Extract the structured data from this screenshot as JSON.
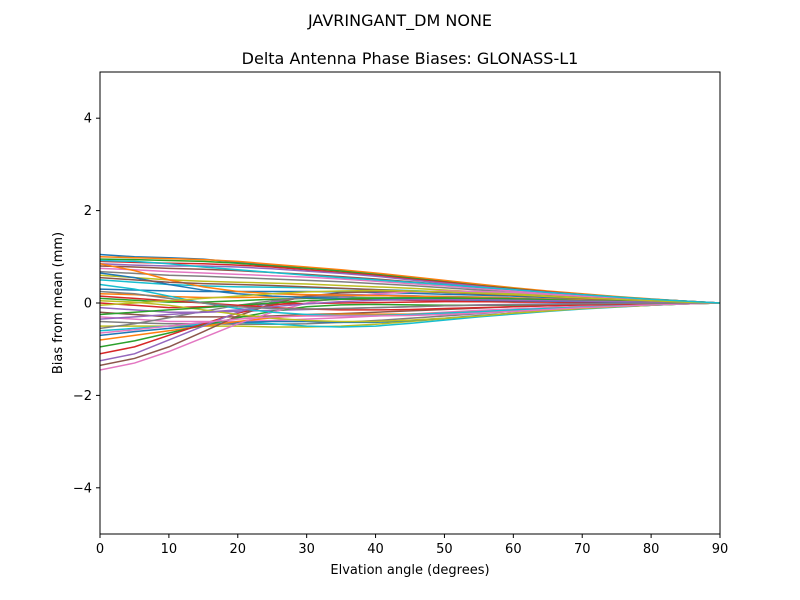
{
  "chart_data": {
    "type": "line",
    "suptitle": "JAVRINGANT_DM   NONE",
    "title": "Delta Antenna Phase Biases: GLONASS-L1",
    "xlabel": "Elvation angle (degrees)",
    "ylabel": "Bias from mean (mm)",
    "xlim": [
      0,
      90
    ],
    "ylim": [
      -5,
      5
    ],
    "x_ticks": [
      0,
      10,
      20,
      30,
      40,
      50,
      60,
      70,
      80,
      90
    ],
    "y_ticks": [
      -4,
      -2,
      0,
      2,
      4
    ],
    "x_tick_labels": [
      "0",
      "10",
      "20",
      "30",
      "40",
      "50",
      "60",
      "70",
      "80",
      "90"
    ],
    "y_tick_labels": [
      "−4",
      "−2",
      "0",
      "2",
      "4"
    ],
    "grid": false,
    "legend": "none",
    "x": [
      0,
      5,
      10,
      15,
      20,
      25,
      30,
      35,
      40,
      45,
      50,
      55,
      60,
      65,
      70,
      75,
      80,
      85,
      90
    ],
    "colors": [
      "#1f77b4",
      "#ff7f0e",
      "#2ca02c",
      "#d62728",
      "#9467bd",
      "#8c564b",
      "#e377c2",
      "#7f7f7f",
      "#bcbd22",
      "#17becf"
    ],
    "series": [
      {
        "values": [
          1.05,
          1.0,
          0.98,
          0.95,
          0.88,
          0.82,
          0.76,
          0.7,
          0.63,
          0.55,
          0.47,
          0.39,
          0.32,
          0.25,
          0.19,
          0.13,
          0.08,
          0.04,
          0.0
        ]
      },
      {
        "values": [
          1.0,
          0.98,
          0.96,
          0.94,
          0.9,
          0.84,
          0.78,
          0.72,
          0.65,
          0.57,
          0.49,
          0.41,
          0.33,
          0.26,
          0.2,
          0.14,
          0.09,
          0.04,
          0.0
        ]
      },
      {
        "values": [
          0.95,
          0.94,
          0.92,
          0.9,
          0.86,
          0.8,
          0.75,
          0.69,
          0.62,
          0.54,
          0.46,
          0.38,
          0.31,
          0.24,
          0.18,
          0.13,
          0.08,
          0.04,
          0.0
        ]
      },
      {
        "values": [
          0.9,
          0.88,
          0.86,
          0.85,
          0.82,
          0.78,
          0.72,
          0.66,
          0.6,
          0.52,
          0.45,
          0.37,
          0.3,
          0.24,
          0.18,
          0.12,
          0.08,
          0.04,
          0.0
        ]
      },
      {
        "values": [
          0.85,
          0.82,
          0.8,
          0.8,
          0.78,
          0.74,
          0.69,
          0.64,
          0.58,
          0.5,
          0.43,
          0.36,
          0.29,
          0.23,
          0.17,
          0.12,
          0.07,
          0.03,
          0.0
        ]
      },
      {
        "values": [
          0.8,
          0.78,
          0.75,
          0.73,
          0.7,
          0.66,
          0.62,
          0.57,
          0.52,
          0.46,
          0.4,
          0.33,
          0.27,
          0.21,
          0.16,
          0.11,
          0.07,
          0.03,
          0.0
        ]
      },
      {
        "values": [
          0.75,
          0.72,
          0.68,
          0.65,
          0.62,
          0.59,
          0.56,
          0.52,
          0.47,
          0.42,
          0.37,
          0.31,
          0.26,
          0.2,
          0.15,
          0.11,
          0.07,
          0.03,
          0.0
        ]
      },
      {
        "values": [
          0.68,
          0.64,
          0.6,
          0.58,
          0.55,
          0.52,
          0.49,
          0.46,
          0.42,
          0.38,
          0.33,
          0.28,
          0.23,
          0.18,
          0.14,
          0.1,
          0.06,
          0.03,
          0.0
        ]
      },
      {
        "values": [
          0.6,
          0.55,
          0.5,
          0.47,
          0.45,
          0.43,
          0.41,
          0.38,
          0.35,
          0.32,
          0.28,
          0.24,
          0.2,
          0.16,
          0.12,
          0.09,
          0.05,
          0.02,
          0.0
        ]
      },
      {
        "values": [
          0.5,
          0.45,
          0.4,
          0.37,
          0.35,
          0.34,
          0.33,
          0.31,
          0.29,
          0.27,
          0.24,
          0.21,
          0.18,
          0.14,
          0.11,
          0.08,
          0.05,
          0.02,
          0.0
        ]
      },
      {
        "values": [
          0.3,
          0.28,
          0.26,
          0.25,
          0.25,
          0.25,
          0.25,
          0.24,
          0.23,
          0.21,
          0.19,
          0.17,
          0.15,
          0.12,
          0.09,
          0.07,
          0.04,
          0.02,
          0.0
        ]
      },
      {
        "values": [
          0.2,
          0.18,
          0.14,
          0.12,
          0.12,
          0.13,
          0.15,
          0.16,
          0.16,
          0.15,
          0.14,
          0.13,
          0.11,
          0.09,
          0.07,
          0.05,
          0.03,
          0.01,
          0.0
        ]
      },
      {
        "values": [
          0.1,
          0.06,
          0.02,
          0.02,
          0.05,
          0.08,
          0.1,
          0.11,
          0.11,
          0.11,
          0.1,
          0.09,
          0.08,
          0.07,
          0.05,
          0.04,
          0.02,
          0.01,
          0.0
        ]
      },
      {
        "values": [
          0.0,
          -0.05,
          -0.1,
          -0.08,
          -0.05,
          -0.03,
          -0.01,
          0.0,
          0.01,
          0.02,
          0.03,
          0.03,
          0.03,
          0.03,
          0.02,
          0.02,
          0.01,
          0.0,
          0.0
        ]
      },
      {
        "values": [
          -0.1,
          -0.15,
          -0.2,
          -0.2,
          -0.18,
          -0.16,
          -0.14,
          -0.12,
          -0.1,
          -0.08,
          -0.06,
          -0.04,
          -0.03,
          -0.02,
          -0.01,
          -0.01,
          0.0,
          0.0,
          0.0
        ]
      },
      {
        "values": [
          -0.2,
          -0.25,
          -0.3,
          -0.3,
          -0.3,
          -0.28,
          -0.25,
          -0.23,
          -0.2,
          -0.17,
          -0.14,
          -0.11,
          -0.08,
          -0.06,
          -0.04,
          -0.03,
          -0.01,
          0.0,
          0.0
        ]
      },
      {
        "values": [
          -0.3,
          -0.35,
          -0.4,
          -0.4,
          -0.4,
          -0.38,
          -0.35,
          -0.32,
          -0.28,
          -0.24,
          -0.2,
          -0.16,
          -0.13,
          -0.1,
          -0.07,
          -0.05,
          -0.03,
          -0.01,
          0.0
        ]
      },
      {
        "values": [
          -0.4,
          -0.43,
          -0.45,
          -0.45,
          -0.46,
          -0.46,
          -0.45,
          -0.42,
          -0.38,
          -0.33,
          -0.28,
          -0.23,
          -0.18,
          -0.14,
          -0.1,
          -0.07,
          -0.04,
          -0.02,
          0.0
        ]
      },
      {
        "values": [
          -0.5,
          -0.5,
          -0.5,
          -0.5,
          -0.5,
          -0.52,
          -0.52,
          -0.5,
          -0.46,
          -0.4,
          -0.34,
          -0.28,
          -0.22,
          -0.17,
          -0.12,
          -0.08,
          -0.05,
          -0.02,
          0.0
        ]
      },
      {
        "values": [
          -0.6,
          -0.55,
          -0.5,
          -0.45,
          -0.42,
          -0.45,
          -0.5,
          -0.52,
          -0.5,
          -0.44,
          -0.37,
          -0.3,
          -0.24,
          -0.18,
          -0.13,
          -0.09,
          -0.05,
          -0.02,
          0.0
        ]
      },
      {
        "values": [
          -0.7,
          -0.62,
          -0.55,
          -0.48,
          -0.42,
          -0.4,
          -0.4,
          -0.42,
          -0.42,
          -0.38,
          -0.33,
          -0.27,
          -0.22,
          -0.17,
          -0.12,
          -0.08,
          -0.05,
          -0.02,
          0.0
        ]
      },
      {
        "values": [
          -0.8,
          -0.7,
          -0.6,
          -0.5,
          -0.4,
          -0.32,
          -0.26,
          -0.24,
          -0.24,
          -0.24,
          -0.22,
          -0.19,
          -0.16,
          -0.12,
          -0.09,
          -0.06,
          -0.04,
          -0.02,
          0.0
        ]
      },
      {
        "values": [
          -0.95,
          -0.82,
          -0.65,
          -0.48,
          -0.32,
          -0.18,
          -0.08,
          -0.04,
          -0.03,
          -0.04,
          -0.05,
          -0.05,
          -0.05,
          -0.04,
          -0.03,
          -0.02,
          -0.01,
          0.0,
          0.0
        ]
      },
      {
        "values": [
          -1.1,
          -0.95,
          -0.7,
          -0.45,
          -0.22,
          -0.05,
          0.05,
          0.08,
          0.08,
          0.06,
          0.04,
          0.03,
          0.02,
          0.02,
          0.01,
          0.01,
          0.0,
          0.0,
          0.0
        ]
      },
      {
        "values": [
          -1.25,
          -1.1,
          -0.8,
          -0.5,
          -0.2,
          0.02,
          0.14,
          0.18,
          0.18,
          0.16,
          0.13,
          0.11,
          0.09,
          0.07,
          0.05,
          0.03,
          0.02,
          0.01,
          0.0
        ]
      },
      {
        "values": [
          -1.35,
          -1.2,
          -0.95,
          -0.62,
          -0.28,
          -0.02,
          0.15,
          0.22,
          0.25,
          0.25,
          0.23,
          0.2,
          0.17,
          0.14,
          0.1,
          0.07,
          0.04,
          0.02,
          0.0
        ]
      },
      {
        "values": [
          -1.45,
          -1.3,
          -1.05,
          -0.75,
          -0.45,
          -0.2,
          0.0,
          0.12,
          0.2,
          0.24,
          0.26,
          0.25,
          0.23,
          0.19,
          0.15,
          0.1,
          0.06,
          0.03,
          0.0
        ]
      },
      {
        "values": [
          -0.55,
          -0.45,
          -0.32,
          -0.18,
          -0.05,
          0.05,
          0.12,
          0.15,
          0.16,
          0.15,
          0.14,
          0.12,
          0.1,
          0.08,
          0.06,
          0.04,
          0.02,
          0.01,
          0.0
        ]
      },
      {
        "values": [
          0.05,
          0.02,
          -0.05,
          -0.15,
          -0.25,
          -0.33,
          -0.38,
          -0.4,
          -0.4,
          -0.37,
          -0.33,
          -0.28,
          -0.22,
          -0.17,
          -0.12,
          -0.08,
          -0.05,
          -0.02,
          0.0
        ]
      },
      {
        "values": [
          0.4,
          0.3,
          0.15,
          0.0,
          -0.12,
          -0.2,
          -0.25,
          -0.27,
          -0.27,
          -0.25,
          -0.22,
          -0.19,
          -0.15,
          -0.12,
          -0.09,
          -0.06,
          -0.04,
          -0.02,
          0.0
        ]
      },
      {
        "values": [
          0.65,
          0.55,
          0.4,
          0.28,
          0.2,
          0.15,
          0.12,
          0.1,
          0.09,
          0.08,
          0.07,
          0.06,
          0.05,
          0.04,
          0.03,
          0.02,
          0.01,
          0.0,
          0.0
        ]
      },
      {
        "values": [
          0.85,
          0.7,
          0.5,
          0.35,
          0.25,
          0.2,
          0.18,
          0.17,
          0.16,
          0.15,
          0.13,
          0.11,
          0.09,
          0.07,
          0.05,
          0.04,
          0.02,
          0.01,
          0.0
        ]
      },
      {
        "values": [
          -0.25,
          -0.2,
          -0.15,
          -0.1,
          -0.05,
          0.0,
          0.05,
          0.08,
          0.1,
          0.11,
          0.11,
          0.1,
          0.09,
          0.07,
          0.05,
          0.04,
          0.02,
          0.01,
          0.0
        ]
      },
      {
        "values": [
          0.15,
          0.1,
          0.05,
          0.0,
          -0.05,
          -0.1,
          -0.13,
          -0.15,
          -0.15,
          -0.14,
          -0.12,
          -0.1,
          -0.08,
          -0.06,
          -0.04,
          -0.03,
          -0.02,
          -0.01,
          0.0
        ]
      },
      {
        "values": [
          -0.35,
          -0.3,
          -0.25,
          -0.2,
          -0.15,
          -0.08,
          -0.02,
          0.03,
          0.06,
          0.07,
          0.07,
          0.07,
          0.06,
          0.05,
          0.04,
          0.03,
          0.02,
          0.01,
          0.0
        ]
      },
      {
        "values": [
          0.55,
          0.5,
          0.45,
          0.42,
          0.4,
          0.38,
          0.35,
          0.32,
          0.29,
          0.26,
          0.23,
          0.2,
          0.17,
          0.14,
          0.11,
          0.08,
          0.05,
          0.02,
          0.0
        ]
      },
      {
        "values": [
          -0.65,
          -0.58,
          -0.5,
          -0.42,
          -0.35,
          -0.3,
          -0.28,
          -0.28,
          -0.28,
          -0.27,
          -0.25,
          -0.22,
          -0.18,
          -0.14,
          -0.1,
          -0.07,
          -0.04,
          -0.02,
          0.0
        ]
      },
      {
        "values": [
          0.25,
          0.2,
          0.1,
          0.0,
          -0.08,
          -0.12,
          -0.13,
          -0.12,
          -0.1,
          -0.08,
          -0.06,
          -0.05,
          -0.04,
          -0.03,
          -0.02,
          -0.01,
          -0.01,
          0.0,
          0.0
        ]
      },
      {
        "values": [
          -0.05,
          0.0,
          0.05,
          0.1,
          0.15,
          0.2,
          0.24,
          0.26,
          0.27,
          0.26,
          0.24,
          0.21,
          0.18,
          0.14,
          0.11,
          0.08,
          0.05,
          0.02,
          0.0
        ]
      },
      {
        "values": [
          0.92,
          0.9,
          0.85,
          0.78,
          0.72,
          0.66,
          0.6,
          0.55,
          0.5,
          0.45,
          0.4,
          0.34,
          0.29,
          0.23,
          0.18,
          0.13,
          0.08,
          0.04,
          0.0
        ]
      }
    ]
  }
}
